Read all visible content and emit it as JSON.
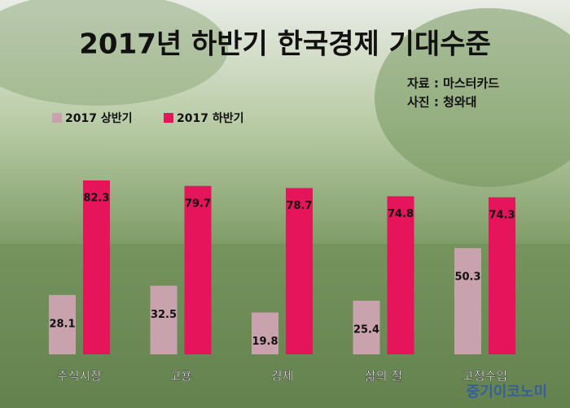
{
  "chart_data": {
    "type": "bar",
    "title": "2017년 하반기 한국경제 기대수준",
    "source": "자료 : 마스터카드",
    "photo_credit": "사진 : 청와대",
    "watermark": "중기이코노미",
    "categories": [
      "주식시장",
      "고용",
      "경제",
      "삶의 질",
      "고정수입"
    ],
    "series": [
      {
        "name": "2017 상반기",
        "color": "#c8a2ac",
        "values": [
          28.1,
          32.5,
          19.8,
          25.4,
          50.3
        ]
      },
      {
        "name": "2017 하반기",
        "color": "#e6145a",
        "values": [
          82.3,
          79.7,
          78.7,
          74.8,
          74.3
        ]
      }
    ]
  }
}
